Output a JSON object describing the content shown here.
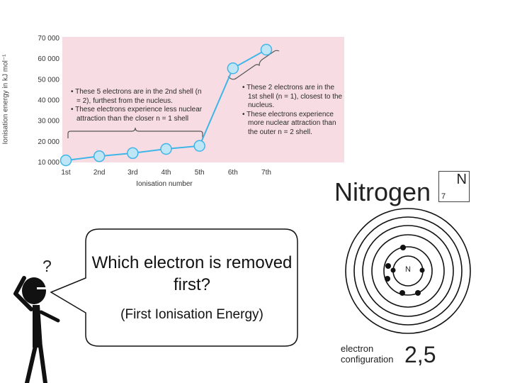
{
  "chart_data": {
    "type": "line",
    "categories": [
      "1st",
      "2nd",
      "3rd",
      "4th",
      "5th",
      "6th",
      "7th"
    ],
    "series": [
      {
        "values": [
          11000,
          13000,
          14500,
          16500,
          18000,
          55500,
          64500
        ]
      }
    ],
    "xlabel": "Ionisation number",
    "ylabel": "Ionisation energy in kJ mol⁻¹",
    "ylim": [
      10000,
      70000
    ],
    "yticks": [
      "10 000",
      "20 000",
      "30 000",
      "40 000",
      "50 000",
      "60 000",
      "70 000"
    ],
    "grid": false,
    "colors": {
      "panel": "#f7dde3",
      "line": "#3fb5e8",
      "marker": "#bfe6f7"
    },
    "annotations": {
      "left": [
        "• These 5 electrons are in the 2nd shell (n = 2), furthest from the nucleus.",
        "• These electrons experience less nuclear attraction than the closer n = 1 shell"
      ],
      "right": [
        "• These 2 electrons are in the 1st shell (n = 1), closest to the nucleus.",
        "• These electrons experience more nuclear attraction than the outer n = 2 shell."
      ]
    }
  },
  "element": {
    "name": "Nitrogen",
    "symbol": "N",
    "atomic_number": "7",
    "nucleus_label": "N",
    "config_label_1": "electron",
    "config_label_2": "configuration",
    "config_value": "2,5"
  },
  "speech": {
    "question": "?",
    "line1": "Which electron is removed first?",
    "line2": "(First Ionisation Energy)"
  }
}
